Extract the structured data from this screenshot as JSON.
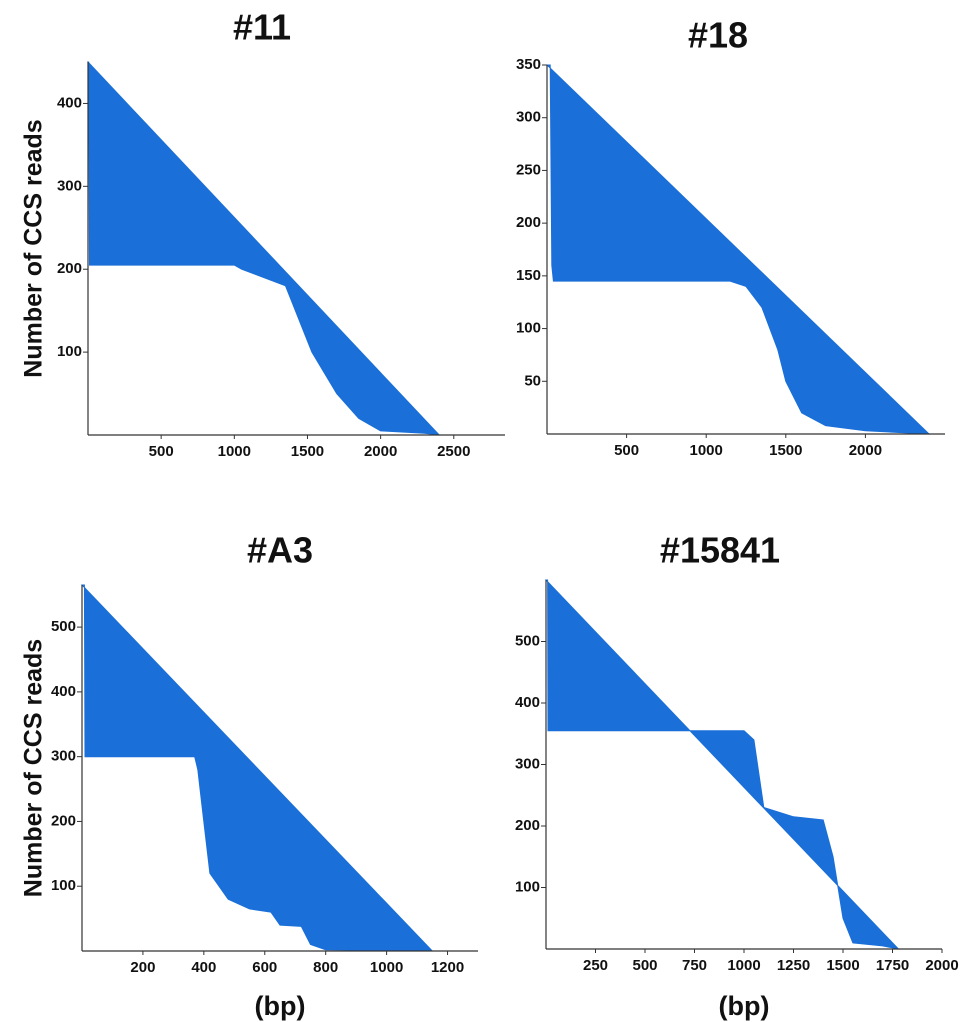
{
  "chart_data": [
    {
      "type": "area",
      "title": "#11",
      "ylabel": "Number of CCS reads",
      "color": "#1a6fd8",
      "x": [
        0,
        5,
        10,
        1000,
        1050,
        1350,
        1530,
        1700,
        1850,
        2000,
        2300,
        2400
      ],
      "values": [
        450,
        450,
        205,
        205,
        200,
        180,
        100,
        50,
        20,
        5,
        2,
        0
      ],
      "xlim": [
        0,
        2850
      ],
      "ylim": [
        0,
        450
      ],
      "xticks": [
        500,
        1000,
        1500,
        2000,
        2500
      ],
      "yticks": [
        100,
        200,
        300,
        400
      ]
    },
    {
      "type": "area",
      "title": "#18",
      "color": "#1a6fd8",
      "x": [
        0,
        20,
        30,
        40,
        1150,
        1250,
        1350,
        1450,
        1500,
        1600,
        1750,
        2000,
        2400
      ],
      "values": [
        350,
        350,
        160,
        145,
        145,
        140,
        120,
        80,
        50,
        20,
        8,
        3,
        0
      ],
      "xlim": [
        0,
        2500
      ],
      "ylim": [
        0,
        350
      ],
      "xticks": [
        500,
        1000,
        1500,
        2000
      ],
      "yticks": [
        50,
        100,
        150,
        200,
        250,
        300,
        350
      ]
    },
    {
      "type": "area",
      "title": "#A3",
      "ylabel": "Number of CCS reads",
      "xlabel": "(bp)",
      "color": "#1a6fd8",
      "x": [
        0,
        8,
        10,
        370,
        380,
        400,
        420,
        480,
        550,
        620,
        650,
        720,
        750,
        800,
        1150
      ],
      "values": [
        565,
        565,
        300,
        300,
        280,
        200,
        120,
        80,
        65,
        60,
        40,
        38,
        10,
        2,
        0
      ],
      "xlim": [
        0,
        1300
      ],
      "ylim": [
        0,
        565
      ],
      "xticks": [
        200,
        400,
        600,
        800,
        1000,
        1200
      ],
      "yticks": [
        100,
        200,
        300,
        400,
        500
      ]
    },
    {
      "type": "area",
      "title": "#15841",
      "xlabel": "(bp)",
      "color": "#1a6fd8",
      "x": [
        0,
        8,
        10,
        1000,
        1050,
        1100,
        1250,
        1400,
        1450,
        1500,
        1550,
        1700,
        1780
      ],
      "values": [
        600,
        600,
        355,
        355,
        340,
        230,
        215,
        210,
        150,
        50,
        10,
        5,
        0
      ],
      "xlim": [
        0,
        2000
      ],
      "ylim": [
        0,
        600
      ],
      "xticks": [
        250,
        500,
        750,
        1000,
        1250,
        1500,
        1750,
        2000
      ],
      "yticks": [
        100,
        200,
        300,
        400,
        500
      ]
    }
  ]
}
